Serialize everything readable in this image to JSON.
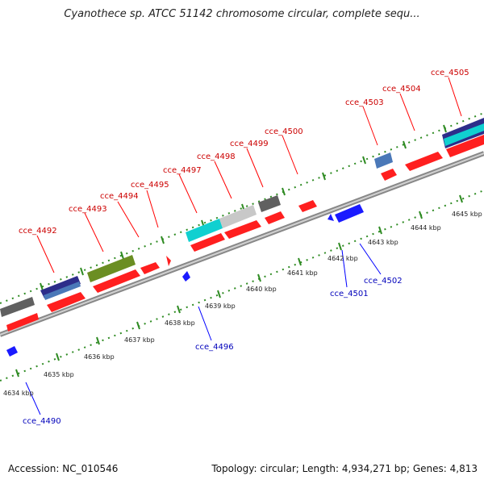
{
  "title": "Cyanothece sp. ATCC 51142 chromosome circular, complete sequ...",
  "footer": {
    "accession": "Accession: NC_010546",
    "summary": "Topology: circular; Length: 4,934,271 bp; Genes: 4,813"
  },
  "colors": {
    "red": "#ff1f1f",
    "blue": "#1a1aff",
    "gray": "#606060",
    "light_gray": "#c8c8c8",
    "olive": "#6b8e23",
    "cyan": "#10d0d0",
    "steel": "#4a78b8",
    "navy": "#2d2d8a",
    "tick_green": "#2e8b22",
    "backbone": "#808080"
  },
  "ticks": [
    "4634 kbp",
    "4635 kbp",
    "4636 kbp",
    "4637 kbp",
    "4638 kbp",
    "4639 kbp",
    "4640 kbp",
    "4641 kbp",
    "4642 kbp",
    "4643 kbp",
    "4644 kbp",
    "4645 kbp"
  ],
  "forward_genes": [
    "cce_4492",
    "cce_4493",
    "cce_4494",
    "cce_4495",
    "cce_4497",
    "cce_4498",
    "cce_4499",
    "cce_4500",
    "cce_4503",
    "cce_4504",
    "cce_4505"
  ],
  "reverse_genes": [
    "cce_4490",
    "cce_4496",
    "cce_4501",
    "cce_4502"
  ]
}
